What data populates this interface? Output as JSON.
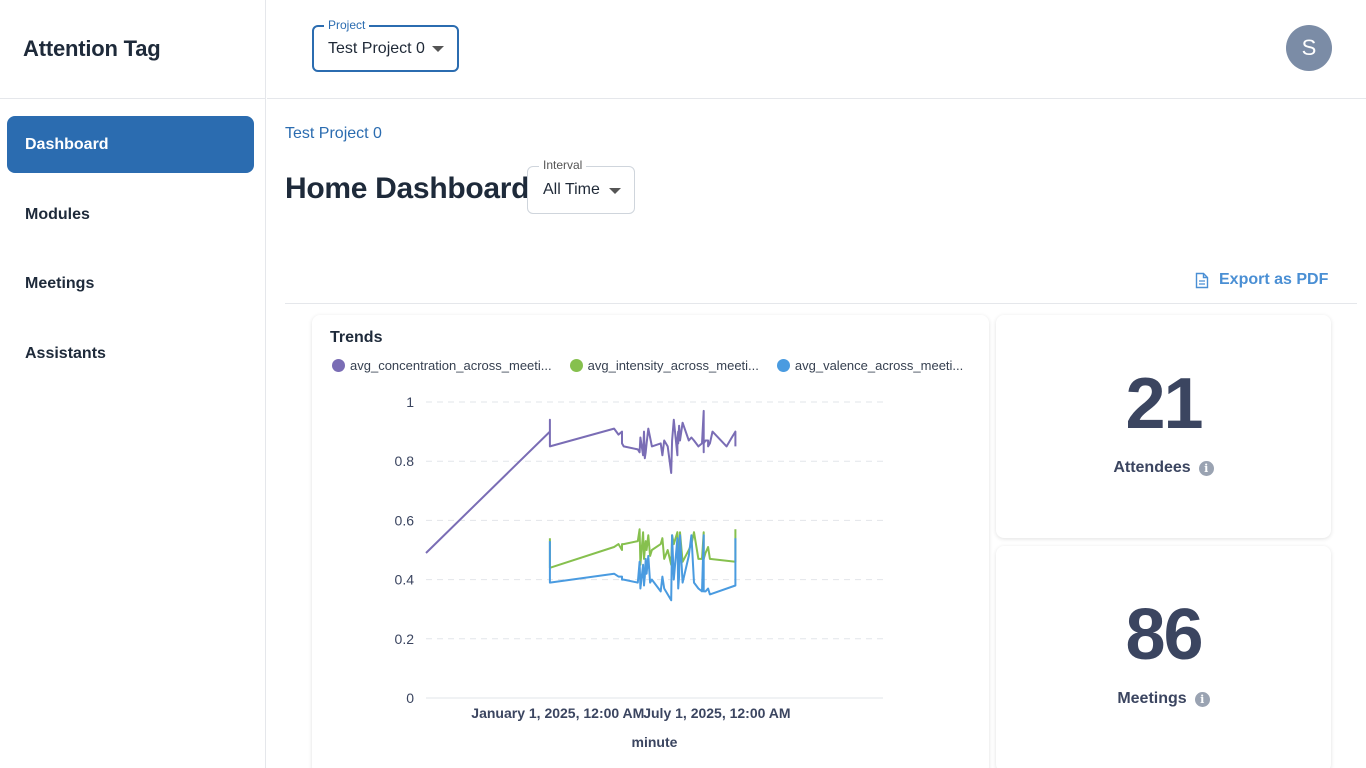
{
  "app": {
    "title": "Attention Tag"
  },
  "header": {
    "project_label": "Project",
    "project_value": "Test Project 0",
    "avatar_initial": "S"
  },
  "sidebar": {
    "items": [
      {
        "label": "Dashboard",
        "active": true
      },
      {
        "label": "Modules",
        "active": false
      },
      {
        "label": "Meetings",
        "active": false
      },
      {
        "label": "Assistants",
        "active": false
      }
    ]
  },
  "main": {
    "breadcrumb": "Test Project 0",
    "title": "Home Dashboard",
    "interval_label": "Interval",
    "interval_value": "All Time",
    "export_label": "Export as PDF"
  },
  "stats": {
    "attendees": {
      "value": "21",
      "label": "Attendees"
    },
    "meetings": {
      "value": "86",
      "label": "Meetings"
    }
  },
  "colors": {
    "primary": "#2b6cb0",
    "concentration": "#7a6db5",
    "intensity": "#86c04e",
    "valence": "#4a9be0"
  },
  "chart_data": {
    "type": "line",
    "title": "Trends",
    "xlabel": "minute",
    "ylabel": "",
    "ylim": [
      0,
      1
    ],
    "yticks": [
      0,
      0.2,
      0.4,
      0.6,
      0.8,
      1
    ],
    "x_tick_labels": [
      "January 1, 2025, 12:00 AM",
      "July 1, 2025, 12:00 AM"
    ],
    "x_range_days": [
      -150,
      370
    ],
    "x_tick_days": [
      0,
      181
    ],
    "series": [
      {
        "name": "avg_concentration_across_meeti...",
        "color": "#7a6db5",
        "x": [
          -150,
          -9,
          -9,
          -9,
          64,
          69,
          73,
          73,
          75,
          91,
          93,
          94,
          97,
          98,
          99,
          100,
          101,
          103,
          103,
          105,
          107,
          117,
          119,
          121,
          125,
          129,
          130,
          132,
          136,
          136,
          137,
          137,
          138,
          139,
          142,
          149,
          152,
          155,
          160,
          164,
          166,
          166,
          166,
          168,
          171,
          171,
          173,
          176,
          192,
          198,
          202,
          202
        ],
        "y": [
          0.49,
          0.9,
          0.94,
          0.85,
          0.91,
          0.89,
          0.9,
          0.86,
          0.85,
          0.84,
          0.83,
          0.88,
          0.82,
          0.9,
          0.81,
          0.83,
          0.86,
          0.91,
          0.91,
          0.88,
          0.85,
          0.86,
          0.82,
          0.87,
          0.85,
          0.76,
          0.87,
          0.94,
          0.82,
          0.87,
          0.9,
          0.86,
          0.92,
          0.87,
          0.93,
          0.87,
          0.88,
          0.87,
          0.85,
          0.86,
          0.97,
          0.83,
          0.86,
          0.87,
          0.87,
          0.85,
          0.86,
          0.9,
          0.85,
          0.88,
          0.9,
          0.85
        ]
      },
      {
        "name": "avg_intensity_across_meeti...",
        "color": "#86c04e",
        "x": [
          -9,
          -9,
          64,
          69,
          73,
          73,
          75,
          91,
          93,
          94,
          97,
          98,
          99,
          100,
          101,
          103,
          105,
          107,
          117,
          119,
          121,
          125,
          129,
          130,
          132,
          136,
          137,
          138,
          139,
          142,
          149,
          152,
          155,
          160,
          164,
          166,
          166,
          168,
          171,
          173,
          202,
          202
        ],
        "y": [
          0.54,
          0.44,
          0.51,
          0.52,
          0.5,
          0.52,
          0.52,
          0.53,
          0.57,
          0.45,
          0.56,
          0.47,
          0.5,
          0.53,
          0.5,
          0.55,
          0.48,
          0.5,
          0.52,
          0.54,
          0.47,
          0.5,
          0.45,
          0.55,
          0.52,
          0.56,
          0.47,
          0.5,
          0.56,
          0.46,
          0.5,
          0.52,
          0.56,
          0.47,
          0.47,
          0.56,
          0.47,
          0.49,
          0.51,
          0.47,
          0.46,
          0.57
        ]
      },
      {
        "name": "avg_valence_across_meeti...",
        "color": "#4a9be0",
        "x": [
          -9,
          -9,
          64,
          69,
          73,
          73,
          75,
          91,
          93,
          94,
          97,
          98,
          99,
          100,
          101,
          103,
          105,
          107,
          117,
          119,
          121,
          125,
          129,
          130,
          132,
          136,
          137,
          138,
          139,
          142,
          149,
          152,
          155,
          160,
          164,
          166,
          166,
          168,
          171,
          173,
          202,
          202
        ],
        "y": [
          0.53,
          0.39,
          0.42,
          0.41,
          0.41,
          0.4,
          0.4,
          0.39,
          0.46,
          0.37,
          0.45,
          0.38,
          0.41,
          0.47,
          0.42,
          0.48,
          0.39,
          0.4,
          0.36,
          0.41,
          0.37,
          0.35,
          0.33,
          0.55,
          0.4,
          0.54,
          0.37,
          0.41,
          0.55,
          0.39,
          0.48,
          0.55,
          0.39,
          0.37,
          0.36,
          0.55,
          0.36,
          0.36,
          0.37,
          0.35,
          0.38,
          0.54
        ]
      }
    ]
  }
}
